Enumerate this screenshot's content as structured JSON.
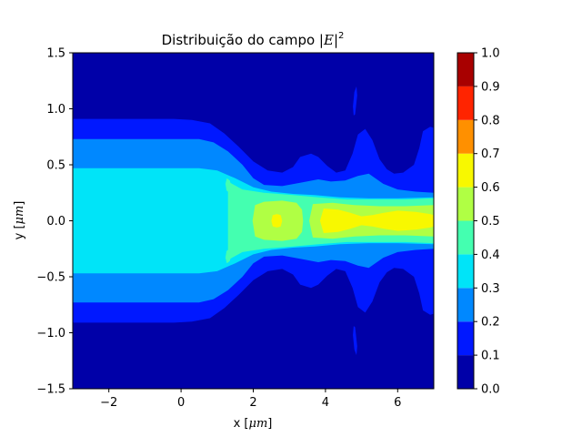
{
  "chart_data": {
    "type": "heatmap",
    "subtype": "filled-contour",
    "title": {
      "main": "Distribuição do campo |",
      "var": "E",
      "close": "|",
      "sup": "2"
    },
    "xlabel": {
      "pre": "x [",
      "unit": "μm",
      "post": "]"
    },
    "ylabel": {
      "pre": "y [",
      "unit": "μm",
      "post": "]"
    },
    "xlim": [
      -3,
      7
    ],
    "ylim": [
      -1.5,
      1.5
    ],
    "xticks": [
      -2,
      0,
      2,
      4,
      6
    ],
    "yticks": [
      -1.5,
      -1.0,
      -0.5,
      0.0,
      0.5,
      1.0,
      1.5
    ],
    "xtick_labels": [
      "−2",
      "0",
      "2",
      "4",
      "6"
    ],
    "ytick_labels": [
      "−1.5",
      "−1.0",
      "−0.5",
      "0.0",
      "0.5",
      "1.0",
      "1.5"
    ],
    "colormap": "jet",
    "levels": [
      0.0,
      0.1,
      0.2,
      0.3,
      0.4,
      0.5,
      0.6,
      0.7,
      0.8,
      0.9,
      1.0
    ],
    "colorbar_tick_labels": [
      "0.0",
      "0.1",
      "0.2",
      "0.3",
      "0.4",
      "0.5",
      "0.6",
      "0.7",
      "0.8",
      "0.9",
      "1.0"
    ],
    "level_colors": [
      "#0000a8",
      "#0018ff",
      "#0088ff",
      "#00e4f8",
      "#44ffb0",
      "#b0ff44",
      "#f8f800",
      "#ff9000",
      "#ff2400",
      "#a80000"
    ],
    "regions": [
      {
        "level_index": 1,
        "points": [
          [
            -3,
            0.91
          ],
          [
            -0.2,
            0.91
          ],
          [
            0.3,
            0.9
          ],
          [
            0.8,
            0.87
          ],
          [
            1.2,
            0.78
          ],
          [
            1.6,
            0.66
          ],
          [
            2.0,
            0.53
          ],
          [
            2.4,
            0.45
          ],
          [
            2.8,
            0.43
          ],
          [
            3.1,
            0.48
          ],
          [
            3.3,
            0.57
          ],
          [
            3.6,
            0.6
          ],
          [
            3.8,
            0.57
          ],
          [
            4.05,
            0.49
          ],
          [
            4.3,
            0.43
          ],
          [
            4.55,
            0.45
          ],
          [
            4.75,
            0.6
          ],
          [
            4.9,
            0.77
          ],
          [
            5.1,
            0.82
          ],
          [
            5.3,
            0.72
          ],
          [
            5.5,
            0.55
          ],
          [
            5.7,
            0.46
          ],
          [
            5.9,
            0.42
          ],
          [
            6.15,
            0.43
          ],
          [
            6.45,
            0.5
          ],
          [
            6.6,
            0.65
          ],
          [
            6.7,
            0.8
          ],
          [
            6.9,
            0.84
          ],
          [
            7,
            0.83
          ],
          [
            7,
            -0.83
          ],
          [
            6.9,
            -0.84
          ],
          [
            6.7,
            -0.8
          ],
          [
            6.6,
            -0.65
          ],
          [
            6.45,
            -0.5
          ],
          [
            6.15,
            -0.43
          ],
          [
            5.9,
            -0.42
          ],
          [
            5.7,
            -0.46
          ],
          [
            5.5,
            -0.55
          ],
          [
            5.3,
            -0.72
          ],
          [
            5.1,
            -0.82
          ],
          [
            4.9,
            -0.77
          ],
          [
            4.75,
            -0.6
          ],
          [
            4.55,
            -0.45
          ],
          [
            4.3,
            -0.43
          ],
          [
            4.05,
            -0.49
          ],
          [
            3.8,
            -0.57
          ],
          [
            3.6,
            -0.6
          ],
          [
            3.3,
            -0.57
          ],
          [
            3.1,
            -0.48
          ],
          [
            2.8,
            -0.43
          ],
          [
            2.4,
            -0.45
          ],
          [
            2.0,
            -0.53
          ],
          [
            1.6,
            -0.66
          ],
          [
            1.2,
            -0.78
          ],
          [
            0.8,
            -0.87
          ],
          [
            0.3,
            -0.9
          ],
          [
            -0.2,
            -0.91
          ],
          [
            -3,
            -0.91
          ]
        ]
      },
      {
        "level_index": 1,
        "points": [
          [
            4.82,
            0.95
          ],
          [
            4.88,
            1.12
          ],
          [
            4.86,
            1.2
          ],
          [
            4.8,
            1.15
          ],
          [
            4.76,
            1.02
          ],
          [
            4.78,
            0.94
          ]
        ]
      },
      {
        "level_index": 1,
        "points": [
          [
            4.82,
            -0.95
          ],
          [
            4.88,
            -1.12
          ],
          [
            4.86,
            -1.2
          ],
          [
            4.8,
            -1.15
          ],
          [
            4.76,
            -1.02
          ],
          [
            4.78,
            -0.94
          ]
        ]
      },
      {
        "level_index": 2,
        "points": [
          [
            -3,
            0.73
          ],
          [
            0.5,
            0.73
          ],
          [
            0.9,
            0.7
          ],
          [
            1.3,
            0.62
          ],
          [
            1.7,
            0.5
          ],
          [
            2.0,
            0.38
          ],
          [
            2.3,
            0.32
          ],
          [
            2.8,
            0.31
          ],
          [
            3.3,
            0.34
          ],
          [
            3.8,
            0.37
          ],
          [
            4.15,
            0.35
          ],
          [
            4.55,
            0.36
          ],
          [
            4.9,
            0.4
          ],
          [
            5.2,
            0.42
          ],
          [
            5.6,
            0.33
          ],
          [
            6.0,
            0.28
          ],
          [
            6.5,
            0.26
          ],
          [
            7,
            0.25
          ],
          [
            7,
            -0.25
          ],
          [
            6.5,
            -0.26
          ],
          [
            6.0,
            -0.28
          ],
          [
            5.6,
            -0.33
          ],
          [
            5.2,
            -0.42
          ],
          [
            4.9,
            -0.4
          ],
          [
            4.55,
            -0.36
          ],
          [
            4.15,
            -0.35
          ],
          [
            3.8,
            -0.37
          ],
          [
            3.3,
            -0.34
          ],
          [
            2.8,
            -0.31
          ],
          [
            2.3,
            -0.32
          ],
          [
            2.0,
            -0.38
          ],
          [
            1.7,
            -0.5
          ],
          [
            1.3,
            -0.62
          ],
          [
            0.9,
            -0.7
          ],
          [
            0.5,
            -0.73
          ],
          [
            -3,
            -0.73
          ]
        ]
      },
      {
        "level_index": 3,
        "points": [
          [
            -3,
            0.47
          ],
          [
            0.5,
            0.47
          ],
          [
            1.0,
            0.45
          ],
          [
            1.5,
            0.38
          ],
          [
            2.0,
            0.3
          ],
          [
            2.5,
            0.26
          ],
          [
            3.1,
            0.24
          ],
          [
            3.7,
            0.23
          ],
          [
            4.4,
            0.21
          ],
          [
            5.2,
            0.2
          ],
          [
            6.0,
            0.2
          ],
          [
            7,
            0.21
          ],
          [
            7,
            -0.21
          ],
          [
            6.0,
            -0.2
          ],
          [
            5.2,
            -0.2
          ],
          [
            4.4,
            -0.21
          ],
          [
            3.7,
            -0.23
          ],
          [
            3.1,
            -0.24
          ],
          [
            2.5,
            -0.26
          ],
          [
            2.0,
            -0.3
          ],
          [
            1.5,
            -0.38
          ],
          [
            1.0,
            -0.45
          ],
          [
            0.5,
            -0.47
          ],
          [
            -3,
            -0.47
          ]
        ]
      },
      {
        "level_index": 4,
        "points": [
          [
            1.3,
            0.35
          ],
          [
            1.7,
            0.28
          ],
          [
            2.3,
            0.25
          ],
          [
            3.1,
            0.23
          ],
          [
            3.8,
            0.21
          ],
          [
            4.6,
            0.19
          ],
          [
            5.4,
            0.19
          ],
          [
            6.2,
            0.19
          ],
          [
            7,
            0.2
          ],
          [
            7,
            -0.2
          ],
          [
            6.2,
            -0.19
          ],
          [
            5.4,
            -0.19
          ],
          [
            4.6,
            -0.19
          ],
          [
            3.8,
            -0.21
          ],
          [
            3.1,
            -0.23
          ],
          [
            2.3,
            -0.25
          ],
          [
            1.7,
            -0.28
          ],
          [
            1.3,
            -0.35
          ]
        ]
      },
      {
        "level_index": 4,
        "points": [
          [
            1.27,
            0.38
          ],
          [
            1.35,
            0.36
          ],
          [
            1.4,
            0.3
          ],
          [
            1.34,
            0.25
          ],
          [
            1.26,
            0.27
          ],
          [
            1.23,
            0.33
          ]
        ]
      },
      {
        "level_index": 4,
        "points": [
          [
            1.27,
            -0.38
          ],
          [
            1.35,
            -0.36
          ],
          [
            1.4,
            -0.3
          ],
          [
            1.34,
            -0.25
          ],
          [
            1.26,
            -0.27
          ],
          [
            1.23,
            -0.33
          ]
        ]
      },
      {
        "level_index": 5,
        "points": [
          [
            2.05,
            0.14
          ],
          [
            2.3,
            0.17
          ],
          [
            2.8,
            0.18
          ],
          [
            3.2,
            0.16
          ],
          [
            3.35,
            0.1
          ],
          [
            3.38,
            0
          ],
          [
            3.35,
            -0.1
          ],
          [
            3.2,
            -0.16
          ],
          [
            2.8,
            -0.18
          ],
          [
            2.3,
            -0.17
          ],
          [
            2.05,
            -0.14
          ],
          [
            1.98,
            0
          ]
        ]
      },
      {
        "level_index": 5,
        "points": [
          [
            3.65,
            0.15
          ],
          [
            4.2,
            0.16
          ],
          [
            4.8,
            0.14
          ],
          [
            5.5,
            0.13
          ],
          [
            6.2,
            0.13
          ],
          [
            7,
            0.14
          ],
          [
            7,
            -0.14
          ],
          [
            6.2,
            -0.13
          ],
          [
            5.5,
            -0.13
          ],
          [
            4.8,
            -0.14
          ],
          [
            4.2,
            -0.16
          ],
          [
            3.65,
            -0.15
          ],
          [
            3.55,
            0
          ]
        ]
      },
      {
        "level_index": 6,
        "points": [
          [
            2.54,
            0.05
          ],
          [
            2.66,
            0.06
          ],
          [
            2.76,
            0.05
          ],
          [
            2.8,
            0
          ],
          [
            2.76,
            -0.05
          ],
          [
            2.66,
            -0.06
          ],
          [
            2.54,
            -0.05
          ],
          [
            2.5,
            0
          ]
        ]
      },
      {
        "level_index": 6,
        "points": [
          [
            3.95,
            0.11
          ],
          [
            4.35,
            0.1
          ],
          [
            4.7,
            0.07
          ],
          [
            5.0,
            0.04
          ],
          [
            5.3,
            0.05
          ],
          [
            5.6,
            0.07
          ],
          [
            6.0,
            0.09
          ],
          [
            6.5,
            0.08
          ],
          [
            6.9,
            0.06
          ],
          [
            7,
            0.05
          ],
          [
            7,
            -0.05
          ],
          [
            6.9,
            -0.06
          ],
          [
            6.5,
            -0.08
          ],
          [
            6.0,
            -0.09
          ],
          [
            5.6,
            -0.07
          ],
          [
            5.3,
            -0.05
          ],
          [
            5.0,
            -0.04
          ],
          [
            4.7,
            -0.07
          ],
          [
            4.35,
            -0.1
          ],
          [
            3.95,
            -0.11
          ],
          [
            3.85,
            0
          ]
        ]
      }
    ]
  }
}
